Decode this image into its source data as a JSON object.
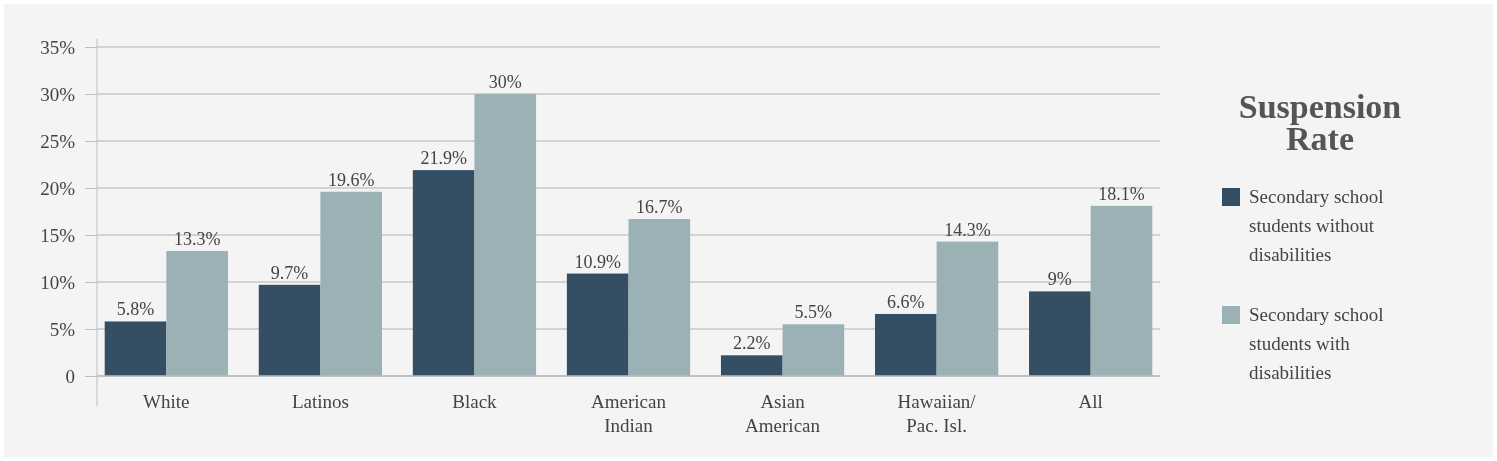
{
  "chart_data": {
    "type": "bar",
    "legend_title": "Suspension Rate",
    "categories": [
      "White",
      "Latinos",
      "Black",
      "American Indian",
      "Asian American",
      "Hawaiian/ Pac. Isl.",
      "All"
    ],
    "series": [
      {
        "name": "Secondary school students without disabilities",
        "color": "#344e63",
        "values": [
          5.8,
          9.7,
          21.9,
          10.9,
          2.2,
          6.6,
          9
        ],
        "value_labels": [
          "5.8%",
          "9.7%",
          "21.9%",
          "10.9%",
          "2.2%",
          "6.6%",
          "9%"
        ]
      },
      {
        "name": "Secondary school students with disabilities",
        "color": "#9bb1b5",
        "values": [
          13.3,
          19.6,
          30,
          16.7,
          5.5,
          14.3,
          18.1
        ],
        "value_labels": [
          "13.3%",
          "19.6%",
          "30%",
          "16.7%",
          "5.5%",
          "14.3%",
          "18.1%"
        ]
      }
    ],
    "ylim": [
      0,
      35
    ],
    "yticks": [
      {
        "value": 0,
        "label": "0"
      },
      {
        "value": 5,
        "label": "5%"
      },
      {
        "value": 10,
        "label": "10%"
      },
      {
        "value": 15,
        "label": "15%"
      },
      {
        "value": 20,
        "label": "20%"
      },
      {
        "value": 25,
        "label": "25%"
      },
      {
        "value": 30,
        "label": "30%"
      },
      {
        "value": 35,
        "label": "35%"
      }
    ],
    "grid": "y",
    "legend": "right"
  }
}
